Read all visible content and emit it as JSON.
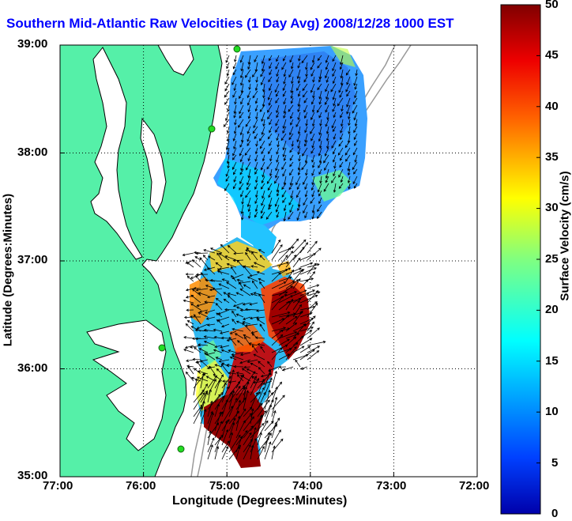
{
  "title": "Southern Mid-Atlantic Raw Velocities (1 Day Avg) 2008/12/28 1000 EST",
  "map": {
    "x_axis_label": "Longitude (Degrees:Minutes)",
    "y_axis_label": "Latitude (Degrees:Minutes)",
    "x_ticks": [
      "77:00",
      "76:00",
      "75:00",
      "74:00",
      "73:00",
      "72:00"
    ],
    "y_ticks": [
      "39:00",
      "38:00",
      "37:00",
      "36:00",
      "35:00"
    ],
    "lon_range": [
      -77,
      -72
    ],
    "lat_range": [
      35,
      39
    ],
    "grid": true,
    "colors": {
      "land": "#55f0a8",
      "water": "#ffffff",
      "coast": "#000000",
      "bathymetry": "#999999",
      "vectors": "#000000",
      "stations": "#22dd22"
    }
  },
  "colorbar": {
    "label": "Surface Velocity (cm/s)",
    "ticks": [
      "0",
      "5",
      "10",
      "15",
      "20",
      "25",
      "30",
      "35",
      "40",
      "45",
      "50"
    ],
    "range": [
      0,
      50
    ],
    "colormap": "jet"
  }
}
